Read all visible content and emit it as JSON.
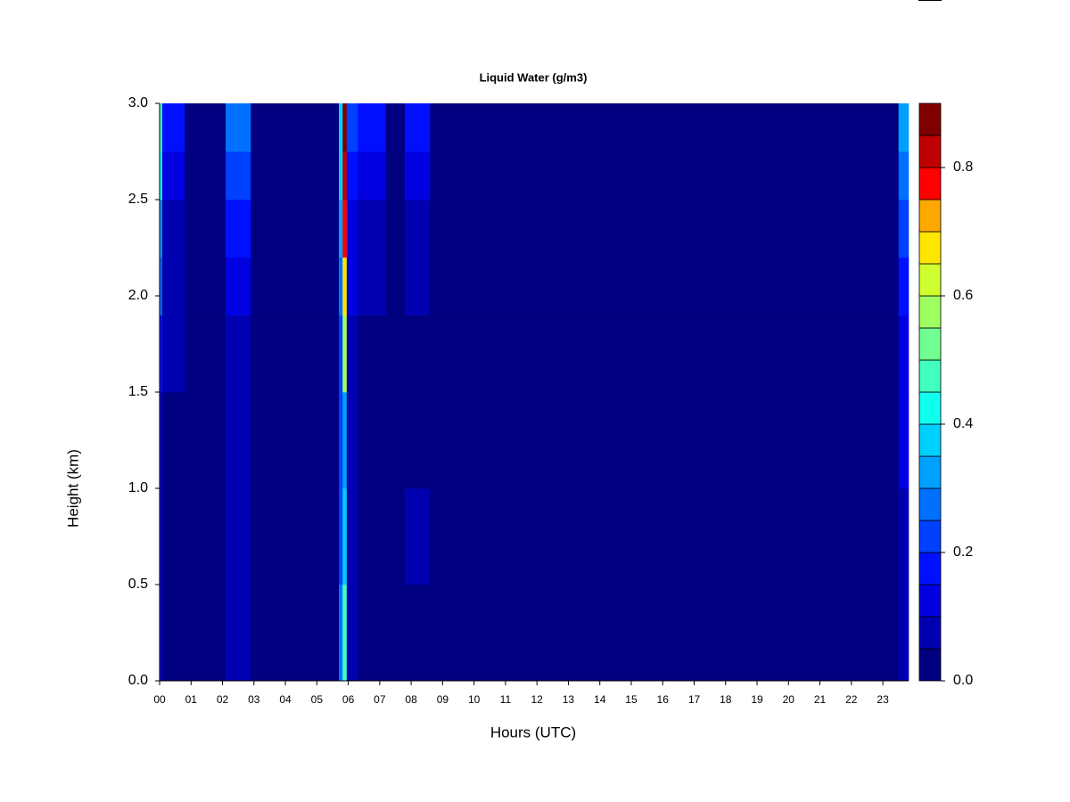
{
  "chart_data": {
    "type": "heatmap",
    "title": "Liquid Water (g/m3)",
    "x_label": "Hours (UTC)",
    "y_label": "Height (km)",
    "xlim": [
      0,
      23.82
    ],
    "ylim": [
      0,
      3
    ],
    "xticks": [
      {
        "value": 0,
        "label": "00"
      },
      {
        "value": 1,
        "label": "01"
      },
      {
        "value": 2,
        "label": "02"
      },
      {
        "value": 3,
        "label": "03"
      },
      {
        "value": 4,
        "label": "04"
      },
      {
        "value": 5,
        "label": "05"
      },
      {
        "value": 6,
        "label": "06"
      },
      {
        "value": 7,
        "label": "07"
      },
      {
        "value": 8,
        "label": "08"
      },
      {
        "value": 9,
        "label": "09"
      },
      10,
      11,
      12,
      13,
      14,
      15,
      16,
      17,
      18,
      19,
      20,
      21,
      22,
      23
    ],
    "yticks": [
      {
        "value": 0,
        "label": "0.0"
      },
      0.5,
      {
        "value": 1,
        "label": "1.0"
      },
      1.5,
      {
        "value": 2,
        "label": "2.0"
      },
      2.5,
      {
        "value": 3,
        "label": "3.0"
      }
    ],
    "x_bins": [
      0,
      0.08,
      0.8,
      2.1,
      2.9,
      5.7,
      5.82,
      5.95,
      6.3,
      7.2,
      7.8,
      8.6,
      23.5,
      23.82
    ],
    "y_bins": [
      0,
      0.5,
      1.0,
      1.5,
      1.9,
      2.2,
      2.5,
      2.75,
      3.0
    ],
    "z": [
      [
        0.12,
        0.03,
        0.03,
        0.07,
        0.03,
        0.25,
        0.45,
        0.07,
        0.03,
        0.03,
        0.03,
        0.03,
        0.07
      ],
      [
        0.1,
        0.03,
        0.03,
        0.05,
        0.03,
        0.2,
        0.38,
        0.05,
        0.03,
        0.03,
        0.05,
        0.03,
        0.07
      ],
      [
        0.12,
        0.03,
        0.03,
        0.05,
        0.03,
        0.2,
        0.32,
        0.05,
        0.03,
        0.03,
        0.03,
        0.03,
        0.1
      ],
      [
        0.15,
        0.05,
        0.03,
        0.07,
        0.03,
        0.2,
        0.55,
        0.07,
        0.03,
        0.03,
        0.03,
        0.03,
        0.12
      ],
      [
        0.25,
        0.05,
        0.03,
        0.1,
        0.03,
        0.25,
        0.68,
        0.1,
        0.05,
        0.03,
        0.05,
        0.03,
        0.15
      ],
      [
        0.3,
        0.07,
        0.03,
        0.15,
        0.03,
        0.3,
        0.78,
        0.12,
        0.07,
        0.03,
        0.07,
        0.03,
        0.2
      ],
      [
        0.4,
        0.12,
        0.03,
        0.2,
        0.03,
        0.35,
        0.82,
        0.15,
        0.12,
        0.03,
        0.12,
        0.03,
        0.25
      ],
      [
        0.45,
        0.15,
        0.03,
        0.25,
        0.03,
        0.35,
        0.85,
        0.2,
        0.15,
        0.03,
        0.15,
        0.03,
        0.3
      ]
    ],
    "levels": [
      0,
      0.05,
      0.1,
      0.15,
      0.2,
      0.25,
      0.3,
      0.35,
      0.4,
      0.45,
      0.5,
      0.55,
      0.6,
      0.65,
      0.7,
      0.75,
      0.8,
      0.85,
      0.9
    ],
    "colors": [
      "#000080",
      "#0000b0",
      "#0000e0",
      "#0010ff",
      "#0040ff",
      "#0070ff",
      "#00a0ff",
      "#00d0ff",
      "#10ffef",
      "#40ffc0",
      "#70ff90",
      "#a0ff60",
      "#d0ff30",
      "#ffe600",
      "#ffa800",
      "#ff0000",
      "#c00000",
      "#800000"
    ],
    "colorbar_ticks": [
      {
        "value": 0,
        "label": "0.0"
      },
      0.2,
      0.4,
      0.6,
      0.8
    ]
  }
}
